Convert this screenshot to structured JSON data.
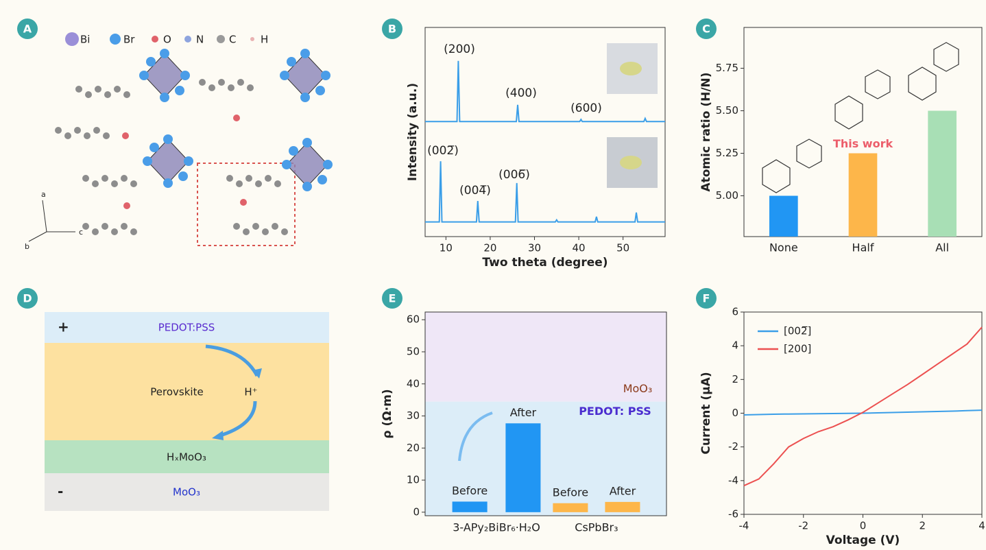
{
  "panel_labels": [
    "A",
    "B",
    "C",
    "D",
    "E",
    "F"
  ],
  "structure": {
    "legend": [
      "Bi",
      "Br",
      "O",
      "N",
      "C",
      "H"
    ],
    "axes": [
      "a",
      "b",
      "c"
    ]
  },
  "device": {
    "layers": [
      "PEDOT:PSS",
      "Perovskite",
      "HₓMoO₃",
      "MoO₃"
    ],
    "signs": [
      "+",
      "-"
    ],
    "ion": "H⁺"
  },
  "chart_data": [
    {
      "type": "line",
      "xlabel": "Two theta (degree)",
      "ylabel": "Intensity (a.u.)",
      "xlim": [
        5.3,
        59.5
      ],
      "ylim": [
        0,
        100
      ],
      "xticks": [
        10,
        20,
        30,
        40,
        50
      ],
      "annotations": [
        "(200)",
        "(400)",
        "(600)",
        "(002̅)",
        "(004̅)",
        "(006̅)"
      ],
      "series": [
        {
          "color": "#3a9ee8",
          "x": [
            5.3,
            12.5,
            12.8,
            13.1,
            25.9,
            26.2,
            26.5,
            40.2,
            40.5,
            40.8,
            54.7,
            55,
            55.3,
            59.5
          ],
          "values": [
            55,
            55,
            84,
            55,
            55,
            63,
            55,
            55,
            56,
            55,
            55,
            56.5,
            55,
            55
          ]
        },
        {
          "color": "#3a9ee8",
          "x": [
            5.3,
            8.5,
            8.8,
            9.1,
            16.9,
            17.2,
            17.5,
            25.7,
            26,
            26.3,
            34.7,
            35,
            35.3,
            43.7,
            44,
            44.3,
            52.7,
            53,
            53.3,
            59.5
          ],
          "values": [
            7,
            7,
            36,
            7,
            7,
            17,
            7,
            7,
            25.6,
            7,
            7,
            8,
            7,
            7,
            9.5,
            7,
            7,
            11.5,
            7,
            7
          ]
        }
      ]
    },
    {
      "type": "bar",
      "ylabel": "Atomic ratio (H/N)",
      "categories": [
        "None",
        "Half",
        "All"
      ],
      "values": [
        5.0,
        5.25,
        5.5
      ],
      "colors": [
        "#2196f3",
        "#fdb64a",
        "#a8dfb5"
      ],
      "ylim": [
        4.76,
        5.99
      ],
      "yticks": [
        {
          "value": 5,
          "label": "5.00"
        },
        {
          "value": 5.25,
          "label": "5.25"
        },
        {
          "value": 5.5,
          "label": "5.50"
        },
        {
          "value": 5.75,
          "label": "5.75"
        }
      ],
      "annotation": "This work"
    },
    {
      "type": "bar",
      "ylabel": "ρ (Ω·m)",
      "values": [
        3.3,
        27.7,
        2.8,
        3.2
      ],
      "bar_labels": [
        "Before",
        "After",
        "Before",
        "After"
      ],
      "colors": [
        "#2196f3",
        "#2196f3",
        "#fdb64a",
        "#fdb64a"
      ],
      "groups": [
        "3-APy₂BiBr₆·H₂O",
        "CsPbBr₃"
      ],
      "regions": [
        "MoO₃",
        "PEDOT:  PSS"
      ],
      "ylim": [
        -1.1,
        62.4
      ],
      "yticks": [
        0,
        10,
        20,
        30,
        40,
        50,
        60
      ]
    },
    {
      "type": "line",
      "xlabel": "Voltage (V)",
      "ylabel": "Current (μA)",
      "xlim": [
        -4,
        4
      ],
      "ylim": [
        -6,
        6
      ],
      "xticks": [
        -4,
        -2,
        0,
        2,
        4
      ],
      "yticks": [
        -6,
        -4,
        -2,
        0,
        2,
        4,
        6
      ],
      "legend": "upper left",
      "x": [
        -4,
        -3.5,
        -3,
        -2.5,
        -2,
        -1.5,
        -1,
        -0.5,
        0,
        0.5,
        1,
        1.5,
        2,
        2.5,
        3,
        3.5,
        4
      ],
      "series": [
        {
          "name": "[002̅]",
          "color": "#3a9ee8",
          "values": [
            -0.1,
            -0.08,
            -0.06,
            -0.05,
            -0.04,
            -0.03,
            -0.02,
            -0.01,
            0,
            0.02,
            0.04,
            0.06,
            0.08,
            0.1,
            0.12,
            0.15,
            0.18
          ]
        },
        {
          "name": "[200]",
          "color": "#ec5050",
          "values": [
            -4.3,
            -3.9,
            -3.0,
            -2.0,
            -1.5,
            -1.1,
            -0.8,
            -0.4,
            0.05,
            0.6,
            1.15,
            1.7,
            2.3,
            2.9,
            3.5,
            4.1,
            5.1
          ]
        }
      ]
    }
  ]
}
